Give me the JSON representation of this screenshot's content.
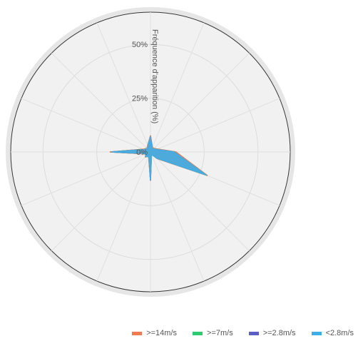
{
  "chart_data": {
    "type": "polar-area",
    "ylabel": "Fréquence d'apparition (%)",
    "r_ticks": [
      "0%",
      "25%",
      "50%"
    ],
    "r_range": [
      0,
      65
    ],
    "directions_deg": [
      0,
      22.5,
      45,
      67.5,
      90,
      112.5,
      135,
      157.5,
      180,
      202.5,
      225,
      247.5,
      270,
      292.5,
      315,
      337.5
    ],
    "grid": true,
    "legend_position": "bottom-right",
    "series": [
      {
        "name": ">=14m/s",
        "color": "#f07b4f",
        "values": [
          0,
          0,
          0,
          0,
          0,
          0,
          0,
          0,
          0,
          0,
          0,
          0,
          0,
          0,
          0,
          0
        ]
      },
      {
        "name": ">=7m/s",
        "color": "#2ecc71",
        "values": [
          0,
          0,
          0,
          0,
          0,
          0,
          0,
          0,
          0,
          0,
          0,
          0,
          0,
          0,
          0,
          0
        ]
      },
      {
        "name": ">=2.8m/s",
        "color": "#5a5fc8",
        "values": [
          0.5,
          0.3,
          0.3,
          0.5,
          0.8,
          0.5,
          0.3,
          0.2,
          0.2,
          0.2,
          0.3,
          0.4,
          0.7,
          0.4,
          0.3,
          0.3
        ]
      },
      {
        "name": "<2.8m/s",
        "color": "#3daee9",
        "values": [
          7,
          2,
          2,
          3,
          11,
          28,
          4,
          1,
          13,
          2,
          3,
          2,
          18,
          3,
          2,
          3
        ]
      }
    ]
  }
}
